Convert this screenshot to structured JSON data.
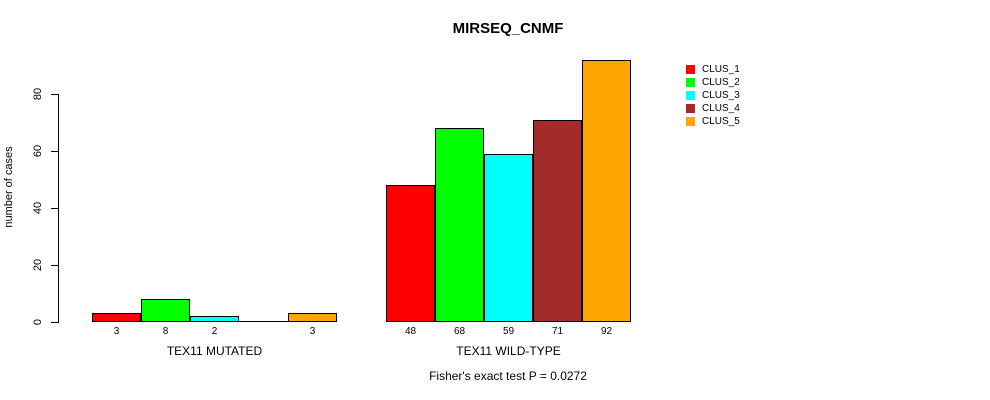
{
  "chart_data": {
    "type": "bar",
    "title": "MIRSEQ_CNMF",
    "ylabel": "number of cases",
    "xlabel": "",
    "ylim": [
      0,
      92
    ],
    "yticks": [
      0,
      20,
      40,
      60,
      80
    ],
    "grid": false,
    "legend_position": "right",
    "categories": [
      "TEX11 MUTATED",
      "TEX11 WILD-TYPE"
    ],
    "series": [
      {
        "name": "CLUS_1",
        "color": "#FF0000",
        "values": [
          3,
          48
        ]
      },
      {
        "name": "CLUS_2",
        "color": "#00FF00",
        "values": [
          8,
          68
        ]
      },
      {
        "name": "CLUS_3",
        "color": "#00FFFF",
        "values": [
          2,
          59
        ]
      },
      {
        "name": "CLUS_4",
        "color": "#A52A2A",
        "values": [
          0,
          71
        ]
      },
      {
        "name": "CLUS_5",
        "color": "#FFA500",
        "values": [
          3,
          92
        ]
      }
    ],
    "bar_labels": [
      [
        "3",
        "8",
        "2",
        "",
        "3"
      ],
      [
        "48",
        "68",
        "59",
        "71",
        "92"
      ]
    ],
    "annotation": "Fisher's exact test P = 0.0272"
  }
}
